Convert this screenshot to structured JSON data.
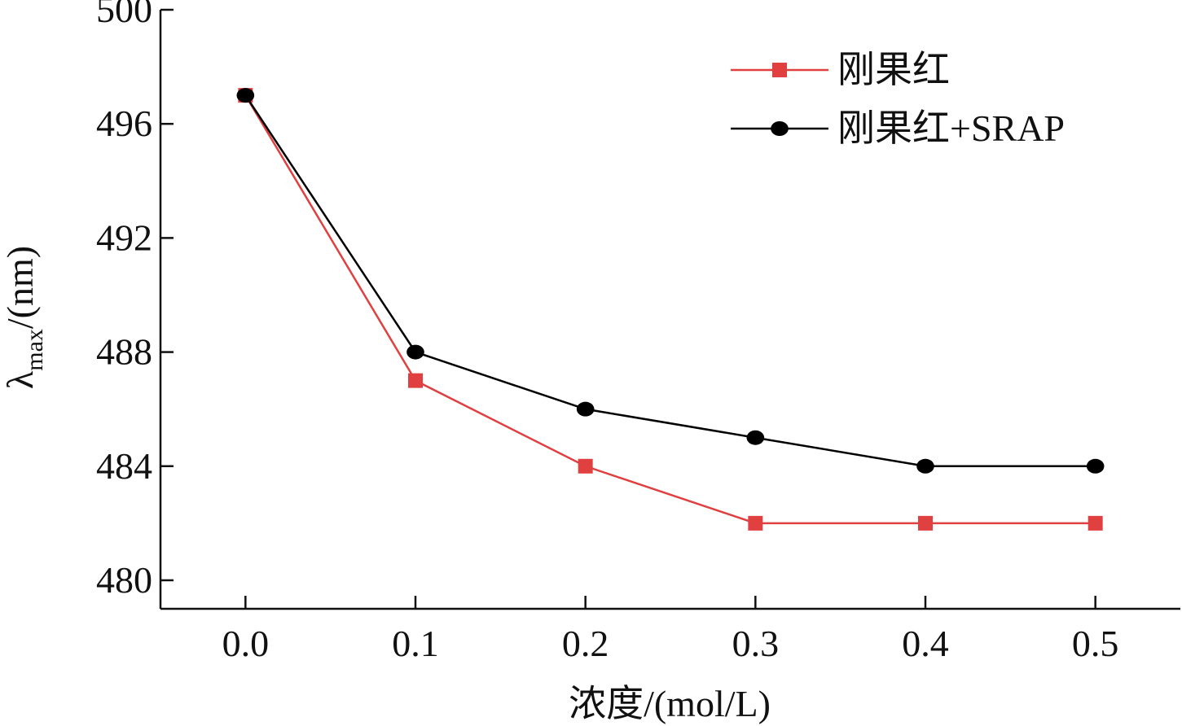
{
  "chart_data": {
    "type": "line",
    "xlabel": "浓度/(mol/L)",
    "ylabel": {
      "main": "λ",
      "sub": "max",
      "unit": "/(nm)"
    },
    "x": [
      0.0,
      0.1,
      0.2,
      0.3,
      0.4,
      0.5
    ],
    "x_ticks": [
      "0.0",
      "0.1",
      "0.2",
      "0.3",
      "0.4",
      "0.5"
    ],
    "xlim": [
      -0.05,
      0.55
    ],
    "ylim": [
      479,
      500
    ],
    "y_ticks": [
      480,
      484,
      488,
      492,
      496,
      500
    ],
    "y_tick_labels": [
      "480",
      "484",
      "488",
      "492",
      "496",
      "500"
    ],
    "grid": false,
    "legend_position": "top-right",
    "series": [
      {
        "name": "刚果红",
        "values": [
          497,
          487,
          484,
          482,
          482,
          482
        ],
        "color": "#e04040",
        "marker": "square"
      },
      {
        "name": "刚果红+SRAP",
        "values": [
          497,
          488,
          486,
          485,
          484,
          484
        ],
        "color": "#000000",
        "marker": "circle"
      }
    ]
  }
}
